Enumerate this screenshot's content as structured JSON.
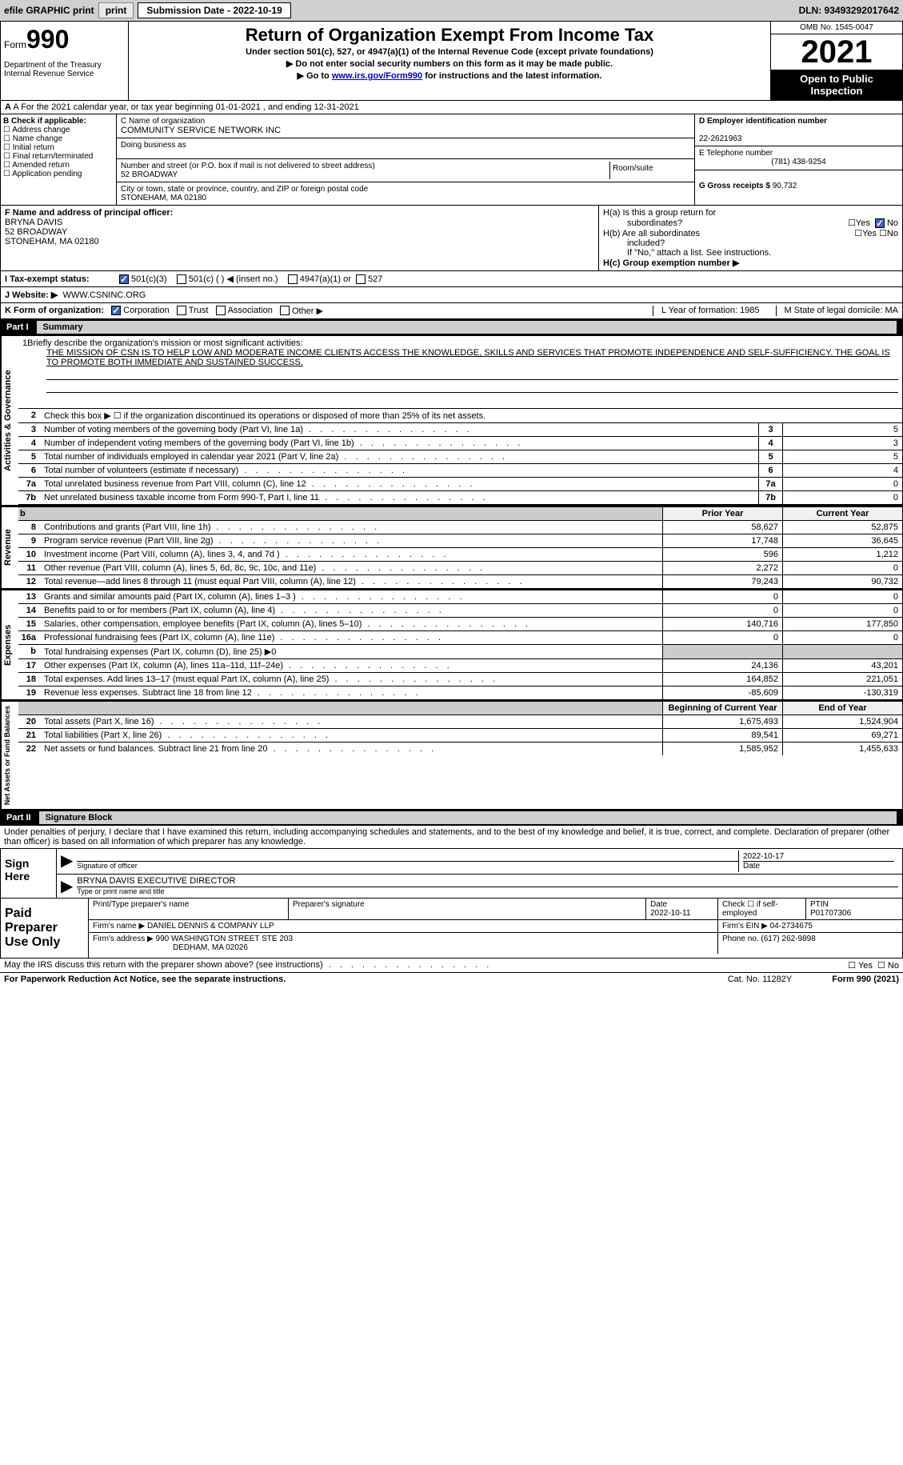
{
  "top": {
    "efile": "efile GRAPHIC print",
    "sub_label": "Submission Date - 2022-10-19",
    "dln": "DLN: 93493292017642"
  },
  "header": {
    "form_label": "Form",
    "form_num": "990",
    "dept": "Department of the Treasury\nInternal Revenue Service",
    "title": "Return of Organization Exempt From Income Tax",
    "subtitle": "Under section 501(c), 527, or 4947(a)(1) of the Internal Revenue Code (except private foundations)",
    "line1": "▶ Do not enter social security numbers on this form as it may be made public.",
    "line2_pre": "▶ Go to ",
    "line2_link": "www.irs.gov/Form990",
    "line2_post": " for instructions and the latest information.",
    "omb": "OMB No. 1545-0047",
    "year": "2021",
    "open": "Open to Public Inspection"
  },
  "row_a": "A For the 2021 calendar year, or tax year beginning 01-01-2021   , and ending 12-31-2021",
  "section_b": {
    "label": "B Check if applicable:",
    "opts": [
      "Address change",
      "Name change",
      "Initial return",
      "Final return/terminated",
      "Amended return",
      "Application pending"
    ]
  },
  "section_c": {
    "name_label": "C Name of organization",
    "name": "COMMUNITY SERVICE NETWORK INC",
    "dba_label": "Doing business as",
    "addr_label": "Number and street (or P.O. box if mail is not delivered to street address)",
    "suite_label": "Room/suite",
    "addr": "52 BROADWAY",
    "city_label": "City or town, state or province, country, and ZIP or foreign postal code",
    "city": "STONEHAM, MA  02180"
  },
  "section_d": {
    "ein_label": "D Employer identification number",
    "ein": "22-2621963",
    "tel_label": "E Telephone number",
    "tel": "(781) 438-9254",
    "gross_label": "G Gross receipts $",
    "gross": "90,732"
  },
  "section_f": {
    "label": "F Name and address of principal officer:",
    "name": "BRYNA DAVIS",
    "addr1": "52 BROADWAY",
    "addr2": "STONEHAM, MA  02180"
  },
  "section_h": {
    "ha1": "H(a)  Is this a group return for",
    "ha2": "subordinates?",
    "hb1": "H(b)  Are all subordinates",
    "hb2": "included?",
    "hb3": "If \"No,\" attach a list. See instructions.",
    "hc": "H(c)  Group exemption number ▶"
  },
  "section_i": {
    "label": "I  Tax-exempt status:",
    "opts": [
      "501(c)(3)",
      "501(c) (   ) ◀ (insert no.)",
      "4947(a)(1) or",
      "527"
    ]
  },
  "section_j": {
    "label": "J  Website: ▶",
    "val": "WWW.CSNINC.ORG"
  },
  "section_k": {
    "label": "K Form of organization:",
    "opts": [
      "Corporation",
      "Trust",
      "Association",
      "Other ▶"
    ],
    "l": "L Year of formation: 1985",
    "m": "M State of legal domicile: MA"
  },
  "part1": {
    "num": "Part I",
    "title": "Summary",
    "mission_label": "Briefly describe the organization's mission or most significant activities:",
    "mission": "THE MISSION OF CSN IS TO HELP LOW AND MODERATE INCOME CLIENTS ACCESS THE KNOWLEDGE, SKILLS AND SERVICES THAT PROMOTE INDEPENDENCE AND SELF-SUFFICIENCY. THE GOAL IS TO PROMOTE BOTH IMMEDIATE AND SUSTAINED SUCCESS.",
    "line2": "Check this box ▶ ☐  if the organization discontinued its operations or disposed of more than 25% of its net assets.",
    "governance_rows": [
      {
        "n": "3",
        "d": "Number of voting members of the governing body (Part VI, line 1a)",
        "v": "5"
      },
      {
        "n": "4",
        "d": "Number of independent voting members of the governing body (Part VI, line 1b)",
        "v": "3"
      },
      {
        "n": "5",
        "d": "Total number of individuals employed in calendar year 2021 (Part V, line 2a)",
        "v": "5"
      },
      {
        "n": "6",
        "d": "Total number of volunteers (estimate if necessary)",
        "v": "4"
      },
      {
        "n": "7a",
        "d": "Total unrelated business revenue from Part VIII, column (C), line 12",
        "v": "0"
      },
      {
        "n": "7b",
        "d": "Net unrelated business taxable income from Form 990-T, Part I, line 11",
        "box": "7b",
        "v": "0"
      }
    ],
    "prior_year": "Prior Year",
    "current_year": "Current Year",
    "revenue_rows": [
      {
        "n": "8",
        "d": "Contributions and grants (Part VIII, line 1h)",
        "p": "58,627",
        "c": "52,875"
      },
      {
        "n": "9",
        "d": "Program service revenue (Part VIII, line 2g)",
        "p": "17,748",
        "c": "36,645"
      },
      {
        "n": "10",
        "d": "Investment income (Part VIII, column (A), lines 3, 4, and 7d )",
        "p": "596",
        "c": "1,212"
      },
      {
        "n": "11",
        "d": "Other revenue (Part VIII, column (A), lines 5, 6d, 8c, 9c, 10c, and 11e)",
        "p": "2,272",
        "c": "0"
      },
      {
        "n": "12",
        "d": "Total revenue—add lines 8 through 11 (must equal Part VIII, column (A), line 12)",
        "p": "79,243",
        "c": "90,732"
      }
    ],
    "expense_rows": [
      {
        "n": "13",
        "d": "Grants and similar amounts paid (Part IX, column (A), lines 1–3 )",
        "p": "0",
        "c": "0"
      },
      {
        "n": "14",
        "d": "Benefits paid to or for members (Part IX, column (A), line 4)",
        "p": "0",
        "c": "0"
      },
      {
        "n": "15",
        "d": "Salaries, other compensation, employee benefits (Part IX, column (A), lines 5–10)",
        "p": "140,716",
        "c": "177,850"
      },
      {
        "n": "16a",
        "d": "Professional fundraising fees (Part IX, column (A), line 11e)",
        "p": "0",
        "c": "0"
      },
      {
        "n": "b",
        "d": "Total fundraising expenses (Part IX, column (D), line 25) ▶0",
        "shaded": true
      },
      {
        "n": "17",
        "d": "Other expenses (Part IX, column (A), lines 11a–11d, 11f–24e)",
        "p": "24,136",
        "c": "43,201"
      },
      {
        "n": "18",
        "d": "Total expenses. Add lines 13–17 (must equal Part IX, column (A), line 25)",
        "p": "164,852",
        "c": "221,051"
      },
      {
        "n": "19",
        "d": "Revenue less expenses. Subtract line 18 from line 12",
        "p": "-85,609",
        "c": "-130,319"
      }
    ],
    "begin_year": "Beginning of Current Year",
    "end_year": "End of Year",
    "net_rows": [
      {
        "n": "20",
        "d": "Total assets (Part X, line 16)",
        "p": "1,675,493",
        "c": "1,524,904"
      },
      {
        "n": "21",
        "d": "Total liabilities (Part X, line 26)",
        "p": "89,541",
        "c": "69,271"
      },
      {
        "n": "22",
        "d": "Net assets or fund balances. Subtract line 21 from line 20",
        "p": "1,585,952",
        "c": "1,455,633"
      }
    ]
  },
  "part2": {
    "num": "Part II",
    "title": "Signature Block",
    "decl": "Under penalties of perjury, I declare that I have examined this return, including accompanying schedules and statements, and to the best of my knowledge and belief, it is true, correct, and complete. Declaration of preparer (other than officer) is based on all information of which preparer has any knowledge.",
    "sign_here": "Sign Here",
    "sig_officer": "Signature of officer",
    "sig_date": "2022-10-17",
    "date_label": "Date",
    "sig_name": "BRYNA DAVIS EXECUTIVE DIRECTOR",
    "sig_name_label": "Type or print name and title",
    "paid_prep": "Paid Preparer Use Only",
    "prep_name_label": "Print/Type preparer's name",
    "prep_sig_label": "Preparer's signature",
    "prep_date_label": "Date",
    "prep_date": "2022-10-11",
    "prep_check": "Check ☐ if self-employed",
    "ptin_label": "PTIN",
    "ptin": "P01707306",
    "firm_name_label": "Firm's name    ▶",
    "firm_name": "DANIEL DENNIS & COMPANY LLP",
    "firm_ein_label": "Firm's EIN ▶",
    "firm_ein": "04-2734675",
    "firm_addr_label": "Firm's address ▶",
    "firm_addr1": "990 WASHINGTON STREET STE 203",
    "firm_addr2": "DEDHAM, MA  02026",
    "phone_label": "Phone no.",
    "phone": "(617) 262-9898",
    "discuss": "May the IRS discuss this return with the preparer shown above? (see instructions)",
    "paperwork": "For Paperwork Reduction Act Notice, see the separate instructions.",
    "cat": "Cat. No. 11282Y",
    "form_foot": "Form 990 (2021)"
  }
}
